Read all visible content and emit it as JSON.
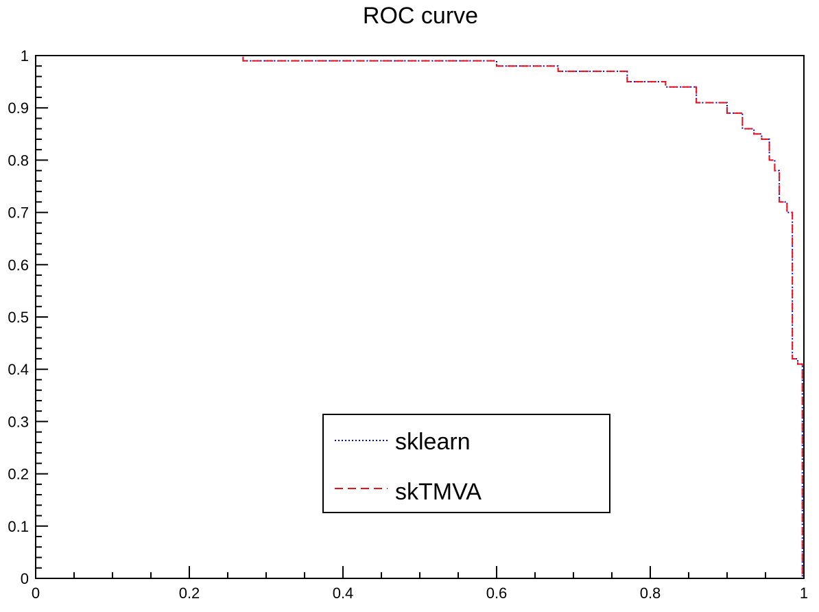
{
  "chart_data": {
    "type": "line",
    "title": "ROC curve",
    "xlabel": "",
    "ylabel": "",
    "xlim": [
      0,
      1
    ],
    "ylim": [
      0,
      1
    ],
    "grid": false,
    "legend_position": "bottom-center",
    "x_ticks": [
      {
        "value": 0,
        "label": "0"
      },
      {
        "value": 0.2,
        "label": "0.2"
      },
      {
        "value": 0.4,
        "label": "0.4"
      },
      {
        "value": 0.6,
        "label": "0.6"
      },
      {
        "value": 0.8,
        "label": "0.8"
      },
      {
        "value": 1,
        "label": "1"
      }
    ],
    "y_ticks": [
      {
        "value": 0,
        "label": "0"
      },
      {
        "value": 0.1,
        "label": "0.1"
      },
      {
        "value": 0.2,
        "label": "0.2"
      },
      {
        "value": 0.3,
        "label": "0.3"
      },
      {
        "value": 0.4,
        "label": "0.4"
      },
      {
        "value": 0.5,
        "label": "0.5"
      },
      {
        "value": 0.6,
        "label": "0.6"
      },
      {
        "value": 0.7,
        "label": "0.7"
      },
      {
        "value": 0.8,
        "label": "0.8"
      },
      {
        "value": 0.9,
        "label": "0.9"
      },
      {
        "value": 1,
        "label": "1"
      }
    ],
    "series": [
      {
        "name": "sklearn",
        "color": "#0000cc",
        "style": "dotted",
        "x": [
          0,
          0.27,
          0.27,
          0.6,
          0.6,
          0.68,
          0.68,
          0.77,
          0.77,
          0.82,
          0.82,
          0.86,
          0.86,
          0.9,
          0.9,
          0.92,
          0.92,
          0.935,
          0.935,
          0.945,
          0.945,
          0.955,
          0.955,
          0.962,
          0.962,
          0.968,
          0.968,
          0.978,
          0.978,
          0.985,
          0.985,
          0.992,
          0.992,
          0.998,
          0.998,
          1.0
        ],
        "y": [
          1.0,
          1.0,
          0.99,
          0.99,
          0.98,
          0.98,
          0.97,
          0.97,
          0.95,
          0.95,
          0.94,
          0.94,
          0.91,
          0.91,
          0.89,
          0.89,
          0.86,
          0.86,
          0.85,
          0.85,
          0.84,
          0.84,
          0.8,
          0.8,
          0.78,
          0.78,
          0.72,
          0.72,
          0.7,
          0.7,
          0.42,
          0.42,
          0.41,
          0.41,
          0.0,
          0.0
        ]
      },
      {
        "name": "skTMVA",
        "color": "#e8101a",
        "style": "dashed",
        "x": [
          0,
          0.27,
          0.27,
          0.6,
          0.6,
          0.68,
          0.68,
          0.77,
          0.77,
          0.82,
          0.82,
          0.86,
          0.86,
          0.9,
          0.9,
          0.92,
          0.92,
          0.935,
          0.935,
          0.945,
          0.945,
          0.955,
          0.955,
          0.962,
          0.962,
          0.968,
          0.968,
          0.978,
          0.978,
          0.985,
          0.985,
          0.992,
          0.992,
          0.998,
          0.998,
          1.0
        ],
        "y": [
          1.0,
          1.0,
          0.99,
          0.99,
          0.98,
          0.98,
          0.97,
          0.97,
          0.95,
          0.95,
          0.94,
          0.94,
          0.91,
          0.91,
          0.89,
          0.89,
          0.86,
          0.86,
          0.85,
          0.85,
          0.84,
          0.84,
          0.8,
          0.8,
          0.78,
          0.78,
          0.72,
          0.72,
          0.7,
          0.7,
          0.42,
          0.42,
          0.41,
          0.41,
          0.0,
          0.0
        ]
      }
    ]
  }
}
